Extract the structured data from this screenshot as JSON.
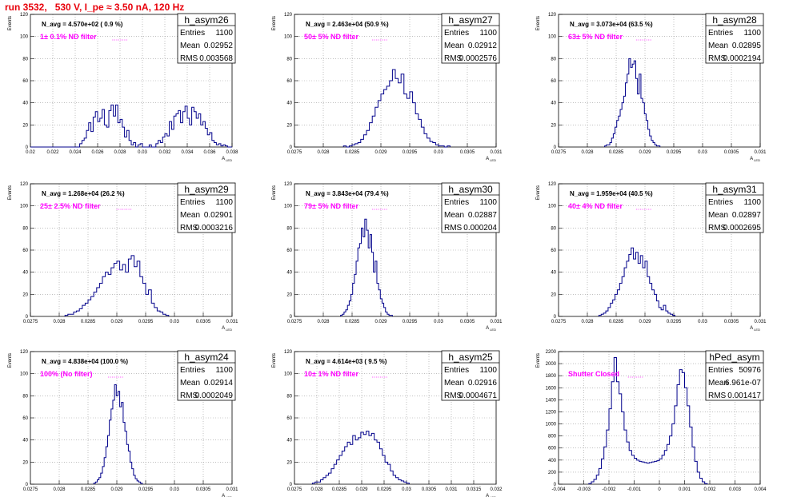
{
  "page_title": "run 3532,   530 V, I_pe ≈ 3.50 nA, 120 Hz",
  "colors": {
    "title": "#e8000b",
    "histogram_line": "#00008b",
    "filter_text": "#ff00ff",
    "grid": "#999999"
  },
  "stat_labels": {
    "entries": "Entries",
    "mean": "Mean",
    "rms": "RMS"
  },
  "chart_data": [
    {
      "type": "histogram",
      "name": "h_asym26",
      "navg": "N_avg = 4.570e+02 ( 0.9 %)",
      "filter": "1± 0.1% ND filter",
      "entries": "1100",
      "mean": "0.02952",
      "rms": "0.003568",
      "ylabel": "Events",
      "xlabel": "A_{LED}",
      "grid": true,
      "xlim": [
        0.02,
        0.038
      ],
      "ylim": [
        0,
        120
      ],
      "xticks": [
        0.02,
        0.022,
        0.024,
        0.026,
        0.028,
        0.03,
        0.032,
        0.034,
        0.036,
        0.038
      ],
      "xtick_labels": [
        "0.02",
        "0.022",
        "0.024",
        "0.026",
        "0.028",
        "0.03",
        "0.032",
        "0.034",
        "0.036",
        "0.038"
      ],
      "yticks": [
        0,
        20,
        40,
        60,
        80,
        100,
        120
      ],
      "ytick_labels": [
        "0",
        "20",
        "40",
        "60",
        "80",
        "100",
        "120"
      ],
      "bins": {
        "start": 0.02,
        "width": 0.0002,
        "counts": [
          0,
          0,
          0,
          0,
          0,
          0,
          0,
          0,
          0,
          0,
          0,
          0,
          0,
          0,
          0,
          0,
          0,
          0,
          0,
          0,
          0,
          0,
          3,
          6,
          8,
          15,
          22,
          14,
          27,
          32,
          23,
          26,
          34,
          20,
          18,
          33,
          38,
          28,
          38,
          22,
          25,
          18,
          9,
          15,
          6,
          2,
          4,
          0,
          2,
          3,
          0,
          0,
          0,
          2,
          0,
          0,
          3,
          6,
          4,
          9,
          12,
          10,
          23,
          16,
          28,
          30,
          33,
          22,
          32,
          37,
          26,
          20,
          36,
          32,
          26,
          30,
          20,
          23,
          17,
          11,
          13,
          6,
          4,
          2,
          3,
          1,
          2,
          1,
          0,
          0
        ]
      }
    },
    {
      "type": "histogram",
      "name": "h_asym27",
      "navg": "N_avg = 2.463e+04 (50.9 %)",
      "filter": "50± 5% ND filter",
      "entries": "1100",
      "mean": "0.02912",
      "rms": "0.0002576",
      "ylabel": "Events",
      "xlabel": "A_{LED}",
      "grid": true,
      "xlim": [
        0.0275,
        0.031
      ],
      "ylim": [
        0,
        120
      ],
      "xticks": [
        0.0275,
        0.028,
        0.0285,
        0.029,
        0.0295,
        0.03,
        0.0305,
        0.031
      ],
      "xtick_labels": [
        "0.0275",
        "0.028",
        "0.0285",
        "0.029",
        "0.0295",
        "0.03",
        "0.0305",
        "0.031"
      ],
      "yticks": [
        0,
        20,
        40,
        60,
        80,
        100,
        120
      ],
      "ytick_labels": [
        "0",
        "20",
        "40",
        "60",
        "80",
        "100",
        "120"
      ],
      "bins": {
        "start": 0.02835,
        "width": 5e-05,
        "counts": [
          1,
          0,
          1,
          2,
          3,
          4,
          7,
          11,
          15,
          22,
          28,
          36,
          42,
          48,
          52,
          55,
          60,
          70,
          62,
          58,
          66,
          48,
          44,
          50,
          40,
          30,
          25,
          18,
          12,
          8,
          5,
          4,
          2,
          1,
          1,
          0,
          1
        ]
      }
    },
    {
      "type": "histogram",
      "name": "h_asym28",
      "navg": "N_avg = 3.073e+04 (63.5 %)",
      "filter": "63± 5% ND filter",
      "entries": "1100",
      "mean": "0.02895",
      "rms": "0.0002194",
      "ylabel": "Events",
      "xlabel": "A_{LED}",
      "grid": true,
      "xlim": [
        0.0275,
        0.031
      ],
      "ylim": [
        0,
        120
      ],
      "xticks": [
        0.0275,
        0.028,
        0.0285,
        0.029,
        0.0295,
        0.03,
        0.0305,
        0.031
      ],
      "xtick_labels": [
        "0.0275",
        "0.028",
        "0.0285",
        "0.029",
        "0.0295",
        "0.03",
        "0.0305",
        "0.031"
      ],
      "yticks": [
        0,
        20,
        40,
        60,
        80,
        100,
        120
      ],
      "ytick_labels": [
        "0",
        "20",
        "40",
        "60",
        "80",
        "100",
        "120"
      ],
      "bins": {
        "start": 0.0283,
        "width": 3e-05,
        "counts": [
          1,
          2,
          2,
          4,
          8,
          12,
          18,
          24,
          28,
          34,
          40,
          46,
          58,
          66,
          80,
          72,
          75,
          78,
          62,
          48,
          66,
          44,
          40,
          30,
          24,
          16,
          10,
          6,
          4,
          2,
          1,
          1
        ]
      }
    },
    {
      "type": "histogram",
      "name": "h_asym29",
      "navg": "N_avg = 1.268e+04 (26.2 %)",
      "filter": "25± 2.5% ND filter",
      "entries": "1100",
      "mean": "0.02901",
      "rms": "0.0003216",
      "ylabel": "Events",
      "xlabel": "A_{LED}",
      "grid": true,
      "xlim": [
        0.0275,
        0.031
      ],
      "ylim": [
        0,
        120
      ],
      "xticks": [
        0.0275,
        0.028,
        0.0285,
        0.029,
        0.0295,
        0.03,
        0.0305,
        0.031
      ],
      "xtick_labels": [
        "0.0275",
        "0.028",
        "0.0285",
        "0.029",
        "0.0295",
        "0.03",
        "0.0305",
        "0.031"
      ],
      "yticks": [
        0,
        20,
        40,
        60,
        80,
        100,
        120
      ],
      "ytick_labels": [
        "0",
        "20",
        "40",
        "60",
        "80",
        "100",
        "120"
      ],
      "bins": {
        "start": 0.0281,
        "width": 5e-05,
        "counts": [
          1,
          2,
          2,
          4,
          5,
          7,
          10,
          12,
          15,
          18,
          22,
          26,
          30,
          36,
          40,
          38,
          44,
          48,
          50,
          42,
          47,
          40,
          52,
          55,
          45,
          50,
          36,
          30,
          20,
          24,
          12,
          8,
          5,
          4,
          2,
          1
        ]
      }
    },
    {
      "type": "histogram",
      "name": "h_asym30",
      "navg": "N_avg = 3.843e+04 (79.4 %)",
      "filter": "79± 5% ND filter",
      "entries": "1100",
      "mean": "0.02887",
      "rms": "0.000204",
      "ylabel": "Events",
      "xlabel": "A_{LED}",
      "grid": true,
      "xlim": [
        0.0275,
        0.031
      ],
      "ylim": [
        0,
        120
      ],
      "xticks": [
        0.0275,
        0.028,
        0.0285,
        0.029,
        0.0295,
        0.03,
        0.0305,
        0.031
      ],
      "xtick_labels": [
        "0.0275",
        "0.028",
        "0.0285",
        "0.029",
        "0.0295",
        "0.03",
        "0.0305",
        "0.031"
      ],
      "yticks": [
        0,
        20,
        40,
        60,
        80,
        100,
        120
      ],
      "ytick_labels": [
        "0",
        "20",
        "40",
        "60",
        "80",
        "100",
        "120"
      ],
      "bins": {
        "start": 0.0283,
        "width": 3e-05,
        "counts": [
          1,
          2,
          4,
          6,
          10,
          14,
          20,
          30,
          38,
          50,
          62,
          66,
          80,
          72,
          88,
          78,
          62,
          74,
          58,
          40,
          50,
          30,
          24,
          16,
          12,
          8,
          4,
          2,
          1,
          1
        ]
      }
    },
    {
      "type": "histogram",
      "name": "h_asym31",
      "navg": "N_avg = 1.959e+04 (40.5 %)",
      "filter": "40± 4% ND filter",
      "entries": "1100",
      "mean": "0.02897",
      "rms": "0.0002695",
      "ylabel": "Events",
      "xlabel": "A_{LED}",
      "grid": true,
      "xlim": [
        0.0275,
        0.031
      ],
      "ylim": [
        0,
        120
      ],
      "xticks": [
        0.0275,
        0.028,
        0.0285,
        0.029,
        0.0295,
        0.03,
        0.0305,
        0.031
      ],
      "xtick_labels": [
        "0.0275",
        "0.028",
        "0.0285",
        "0.029",
        "0.0295",
        "0.03",
        "0.0305",
        "0.031"
      ],
      "yticks": [
        0,
        20,
        40,
        60,
        80,
        100,
        120
      ],
      "ytick_labels": [
        "0",
        "20",
        "40",
        "60",
        "80",
        "100",
        "120"
      ],
      "bins": {
        "start": 0.0282,
        "width": 4e-05,
        "counts": [
          1,
          2,
          3,
          5,
          8,
          12,
          15,
          20,
          24,
          30,
          36,
          44,
          50,
          56,
          62,
          52,
          58,
          48,
          55,
          44,
          50,
          36,
          30,
          24,
          20,
          14,
          8,
          6,
          10,
          5,
          3,
          2,
          1
        ]
      }
    },
    {
      "type": "histogram",
      "name": "h_asym24",
      "navg": "N_avg = 4.838e+04 (100.0 %)",
      "filter": "100% (No filter)",
      "entries": "1100",
      "mean": "0.02914",
      "rms": "0.0002049",
      "ylabel": "Events",
      "xlabel": "A_{LED}",
      "grid": true,
      "xlim": [
        0.0275,
        0.031
      ],
      "ylim": [
        0,
        120
      ],
      "xticks": [
        0.0275,
        0.028,
        0.0285,
        0.029,
        0.0295,
        0.03,
        0.0305,
        0.031
      ],
      "xtick_labels": [
        "0.0275",
        "0.028",
        "0.0285",
        "0.029",
        "0.0295",
        "0.03",
        "0.0305",
        "0.031"
      ],
      "yticks": [
        0,
        20,
        40,
        60,
        80,
        100,
        120
      ],
      "ytick_labels": [
        "0",
        "20",
        "40",
        "60",
        "80",
        "100",
        "120"
      ],
      "bins": {
        "start": 0.0286,
        "width": 3e-05,
        "counts": [
          1,
          2,
          4,
          6,
          10,
          16,
          24,
          34,
          44,
          58,
          68,
          76,
          90,
          80,
          84,
          70,
          74,
          56,
          48,
          36,
          30,
          20,
          14,
          8,
          5,
          3,
          2,
          1
        ]
      }
    },
    {
      "type": "histogram",
      "name": "h_asym25",
      "navg": "N_avg = 4.614e+03 ( 9.5 %)",
      "filter": "10± 1% ND filter",
      "entries": "1100",
      "mean": "0.02916",
      "rms": "0.0004671",
      "ylabel": "Events",
      "xlabel": "A_{LED}",
      "grid": true,
      "xlim": [
        0.0275,
        0.032
      ],
      "ylim": [
        0,
        120
      ],
      "xticks": [
        0.0275,
        0.028,
        0.0285,
        0.029,
        0.0295,
        0.03,
        0.0305,
        0.031,
        0.0315,
        0.032
      ],
      "xtick_labels": [
        "0.0275",
        "0.028",
        "0.0285",
        "0.029",
        "0.0295",
        "0.03",
        "0.0305",
        "0.031",
        "0.0315",
        "0.032"
      ],
      "yticks": [
        0,
        20,
        40,
        60,
        80,
        100,
        120
      ],
      "ytick_labels": [
        "0",
        "20",
        "40",
        "60",
        "80",
        "100",
        "120"
      ],
      "bins": {
        "start": 0.0279,
        "width": 6e-05,
        "counts": [
          1,
          2,
          2,
          4,
          6,
          8,
          10,
          14,
          18,
          22,
          26,
          30,
          34,
          38,
          36,
          44,
          40,
          42,
          47,
          45,
          48,
          44,
          46,
          40,
          38,
          32,
          26,
          20,
          18,
          12,
          8,
          6,
          4,
          3,
          2,
          1
        ]
      }
    },
    {
      "type": "histogram",
      "name": "hPed_asym",
      "navg": "",
      "filter": "Shutter Closed",
      "entries": "50976",
      "mean": "6.961e-07",
      "rms": "0.001417",
      "ylabel": "Events",
      "xlabel": "",
      "grid": true,
      "xlim": [
        -0.004,
        0.004
      ],
      "ylim": [
        0,
        2200
      ],
      "xticks": [
        -0.004,
        -0.003,
        -0.002,
        -0.001,
        0,
        0.001,
        0.002,
        0.003,
        0.004
      ],
      "xtick_labels": [
        "-0.004",
        "-0.003",
        "-0.002",
        "-0.001",
        "0",
        "0.001",
        "0.002",
        "0.003",
        "0.004"
      ],
      "yticks": [
        0,
        200,
        400,
        600,
        800,
        1000,
        1200,
        1400,
        1600,
        1800,
        2000,
        2200
      ],
      "ytick_labels": [
        "0",
        "200",
        "400",
        "600",
        "800",
        "1000",
        "1200",
        "1400",
        "1600",
        "1800",
        "2000",
        "2200"
      ],
      "bins": {
        "start": -0.0028,
        "width": 0.0001,
        "counts": [
          10,
          40,
          80,
          150,
          260,
          420,
          620,
          900,
          1250,
          1700,
          2100,
          1700,
          1500,
          1200,
          900,
          700,
          560,
          480,
          430,
          400,
          380,
          370,
          360,
          350,
          360,
          370,
          380,
          390,
          420,
          480,
          560,
          660,
          800,
          1000,
          1300,
          1650,
          1900,
          1850,
          1600,
          1300,
          950,
          620,
          380,
          200,
          100,
          40,
          10
        ]
      }
    }
  ]
}
